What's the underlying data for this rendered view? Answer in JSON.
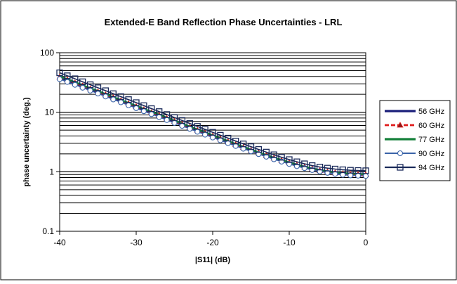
{
  "chart_data": {
    "type": "line",
    "title": "Extended-E Band Reflection Phase Uncertainties - LRL",
    "xlabel": "|S11| (dB)",
    "ylabel": "phase uncertainty (deg.)",
    "xlim": [
      -40,
      0
    ],
    "ylim": [
      0.1,
      100
    ],
    "yscale": "log",
    "grid": "horizontal",
    "legend_position": "right",
    "x_ticks": [
      "-40",
      "-30",
      "-20",
      "-10",
      "0"
    ],
    "y_ticks": [
      "0.1",
      "1",
      "10",
      "100"
    ],
    "x": [
      -40,
      -39,
      -38,
      -37,
      -36,
      -35,
      -34,
      -33,
      -32,
      -31,
      -30,
      -29,
      -28,
      -27,
      -26,
      -25,
      -24,
      -23,
      -22,
      -21,
      -20,
      -19,
      -18,
      -17,
      -16,
      -15,
      -14,
      -13,
      -12,
      -11,
      -10,
      -9,
      -8,
      -7,
      -6,
      -5,
      -4,
      -3,
      -2,
      -1,
      0
    ],
    "series": [
      {
        "name": "56 GHz",
        "color": "#1a1f7a",
        "marker": "none",
        "values": [
          38.0,
          34.0,
          30.3,
          27.0,
          24.1,
          21.5,
          19.2,
          17.1,
          15.2,
          13.6,
          12.1,
          10.8,
          9.6,
          8.6,
          7.7,
          6.8,
          6.1,
          5.45,
          4.87,
          4.35,
          3.9,
          3.49,
          3.12,
          2.8,
          2.52,
          2.27,
          2.04,
          1.84,
          1.67,
          1.52,
          1.39,
          1.28,
          1.18,
          1.1,
          1.04,
          0.99,
          0.95,
          0.92,
          0.9,
          0.89,
          0.88
        ]
      },
      {
        "name": "60 GHz",
        "color": "#e01b1b",
        "marker": "triangle",
        "values": [
          39.0,
          35.0,
          31.2,
          27.8,
          24.8,
          22.1,
          19.7,
          17.6,
          15.7,
          14.0,
          12.5,
          11.1,
          9.9,
          8.85,
          7.9,
          7.05,
          6.3,
          5.6,
          5.0,
          4.47,
          4.0,
          3.58,
          3.2,
          2.87,
          2.57,
          2.31,
          2.08,
          1.87,
          1.7,
          1.55,
          1.42,
          1.3,
          1.2,
          1.12,
          1.05,
          1.0,
          0.96,
          0.93,
          0.91,
          0.9,
          0.89
        ]
      },
      {
        "name": "77 GHz",
        "color": "#15803a",
        "marker": "none",
        "values": [
          40.0,
          35.8,
          32.0,
          28.5,
          25.4,
          22.7,
          20.2,
          18.0,
          16.1,
          14.3,
          12.8,
          11.4,
          10.2,
          9.08,
          8.1,
          7.23,
          6.45,
          5.75,
          5.13,
          4.58,
          4.1,
          3.66,
          3.28,
          2.93,
          2.63,
          2.36,
          2.12,
          1.91,
          1.73,
          1.58,
          1.44,
          1.32,
          1.22,
          1.14,
          1.07,
          1.02,
          0.98,
          0.95,
          0.93,
          0.92,
          0.91
        ]
      },
      {
        "name": "90 GHz",
        "color": "#3a63a8",
        "marker": "circle",
        "values": [
          36.0,
          32.3,
          28.9,
          25.8,
          23.1,
          20.6,
          18.4,
          16.4,
          14.7,
          13.1,
          11.7,
          10.4,
          9.3,
          8.3,
          7.4,
          6.6,
          5.9,
          5.27,
          4.7,
          4.2,
          3.76,
          3.37,
          3.02,
          2.71,
          2.44,
          2.2,
          1.98,
          1.79,
          1.62,
          1.48,
          1.35,
          1.24,
          1.15,
          1.07,
          1.01,
          0.96,
          0.92,
          0.89,
          0.87,
          0.86,
          0.85
        ]
      },
      {
        "name": "94 GHz",
        "color": "#1a2a5a",
        "marker": "square",
        "values": [
          46.0,
          41.0,
          36.5,
          32.5,
          29.0,
          25.8,
          23.0,
          20.5,
          18.3,
          16.3,
          14.5,
          12.9,
          11.5,
          10.25,
          9.15,
          8.15,
          7.27,
          6.48,
          5.78,
          5.16,
          4.6,
          4.11,
          3.67,
          3.28,
          2.94,
          2.64,
          2.37,
          2.14,
          1.93,
          1.75,
          1.6,
          1.47,
          1.36,
          1.27,
          1.2,
          1.15,
          1.11,
          1.08,
          1.06,
          1.05,
          1.04
        ]
      }
    ]
  }
}
